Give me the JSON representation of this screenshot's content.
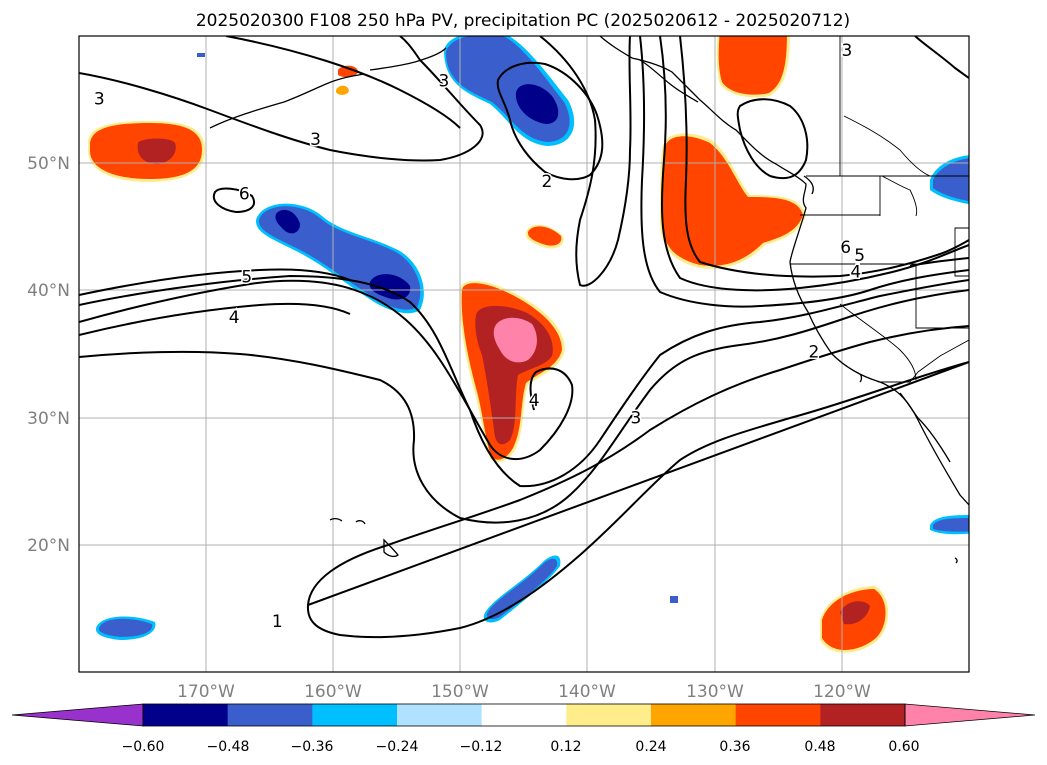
{
  "title": "2025020300 F108 250 hPa PV, precipitation PC (2025020612 - 2025020712)",
  "map": {
    "projection": "PlateCarree",
    "lon_range": [
      -180,
      -110
    ],
    "lat_range": [
      10,
      60
    ],
    "gridlines": true,
    "lat_ticks": [
      {
        "lat": 50,
        "label": "50°N"
      },
      {
        "lat": 40,
        "label": "40°N"
      },
      {
        "lat": 30,
        "label": "30°N"
      },
      {
        "lat": 20,
        "label": "20°N"
      }
    ],
    "lon_ticks": [
      {
        "lon": -170,
        "label": "170°W"
      },
      {
        "lon": -160,
        "label": "160°W"
      },
      {
        "lon": -150,
        "label": "150°W"
      },
      {
        "lon": -140,
        "label": "140°W"
      },
      {
        "lon": -130,
        "label": "130°W"
      },
      {
        "lon": -120,
        "label": "120°W"
      }
    ]
  },
  "contour_labels": [
    {
      "text": "1",
      "lon": -164.4,
      "lat": 14.0
    },
    {
      "text": "2",
      "lon": -122.2,
      "lat": 35.2
    },
    {
      "text": "2",
      "lon": -143.2,
      "lat": 48.6
    },
    {
      "text": "3",
      "lon": -151.3,
      "lat": 56.5
    },
    {
      "text": "3",
      "lon": -178.4,
      "lat": 55.1
    },
    {
      "text": "3",
      "lon": -161.4,
      "lat": 51.9
    },
    {
      "text": "3",
      "lon": -136.2,
      "lat": 30.0
    },
    {
      "text": "3",
      "lon": -119.6,
      "lat": 58.9
    },
    {
      "text": "4",
      "lon": -144.2,
      "lat": 31.4
    },
    {
      "text": "4",
      "lon": -167.8,
      "lat": 37.9
    },
    {
      "text": "4",
      "lon": -118.9,
      "lat": 41.5
    },
    {
      "text": "5",
      "lon": -166.8,
      "lat": 41.1
    },
    {
      "text": "5",
      "lon": -118.6,
      "lat": 42.8
    },
    {
      "text": "6",
      "lon": -167.0,
      "lat": 47.6
    },
    {
      "text": "6",
      "lon": -119.7,
      "lat": 43.4
    }
  ],
  "colorbar": {
    "ticks": [
      "−0.60",
      "−0.48",
      "−0.36",
      "−0.24",
      "−0.12",
      "0.12",
      "0.24",
      "0.36",
      "0.48",
      "0.60"
    ],
    "levels": [
      -0.6,
      -0.48,
      -0.36,
      -0.24,
      -0.12,
      0.12,
      0.24,
      0.36,
      0.48,
      0.6
    ],
    "colors": [
      "#9932cc",
      "#00008b",
      "#3a5fcd",
      "#00bfff",
      "#b0e2ff",
      "#ffffff",
      "#ffec8b",
      "#ffa500",
      "#ff4500",
      "#b22222",
      "#ff82ab"
    ],
    "extend": "both"
  }
}
